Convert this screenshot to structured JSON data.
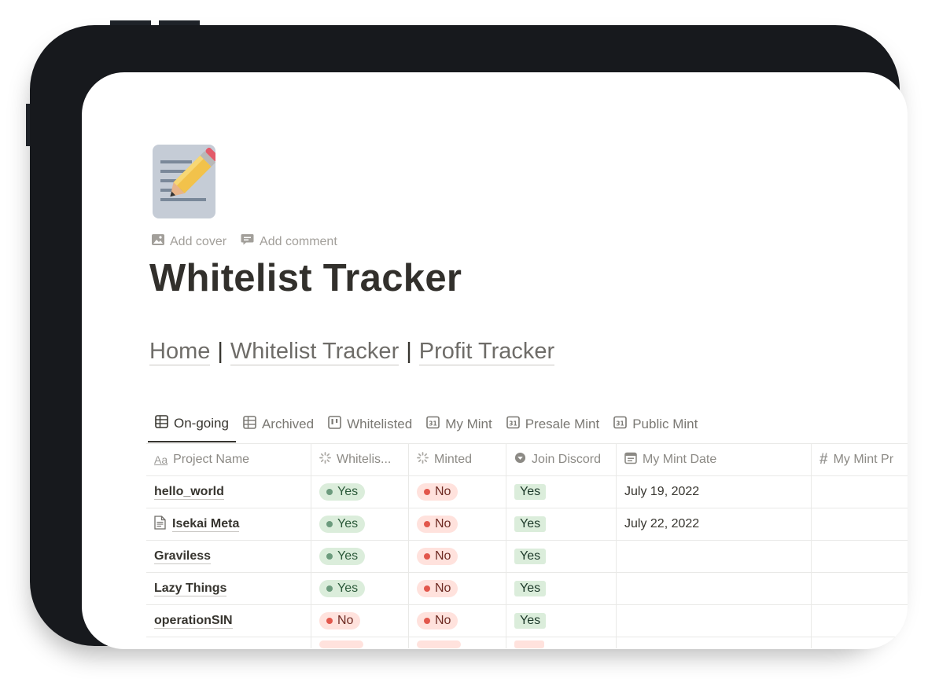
{
  "page": {
    "icon": "memo-pencil-icon",
    "actions": [
      {
        "icon": "image-icon",
        "label": "Add cover"
      },
      {
        "icon": "comment-icon",
        "label": "Add comment"
      }
    ],
    "title": "Whitelist Tracker",
    "breadcrumb": {
      "home": "Home",
      "sep1": "|",
      "whitelist": "Whitelist Tracker",
      "sep2": "|",
      "profit": "Profit Tracker"
    }
  },
  "views": [
    {
      "icon": "table-icon",
      "label": "On-going",
      "active": true
    },
    {
      "icon": "table-icon",
      "label": "Archived"
    },
    {
      "icon": "board-icon",
      "label": "Whitelisted"
    },
    {
      "icon": "calendar-icon",
      "label": "My Mint"
    },
    {
      "icon": "calendar-icon",
      "label": "Presale Mint"
    },
    {
      "icon": "calendar-icon",
      "label": "Public Mint"
    }
  ],
  "calendar_icon_text": "31",
  "columns": [
    {
      "icon": "text-aa-icon",
      "label": "Project Name"
    },
    {
      "icon": "status-icon",
      "label": "Whitelis..."
    },
    {
      "icon": "status-icon",
      "label": "Minted"
    },
    {
      "icon": "select-icon",
      "label": "Join Discord"
    },
    {
      "icon": "date-icon",
      "label": "My Mint Date"
    },
    {
      "icon": "number-icon",
      "label": "My Mint Pr"
    }
  ],
  "column_icon_text": {
    "aa": "Aa",
    "hash": "#"
  },
  "rows": [
    {
      "name": "hello_world",
      "doc": false,
      "whitelisted": "Yes",
      "minted": "No",
      "discord": "Yes",
      "mint_date": "July 19, 2022"
    },
    {
      "name": "Isekai Meta",
      "doc": true,
      "whitelisted": "Yes",
      "minted": "No",
      "discord": "Yes",
      "mint_date": "July 22, 2022"
    },
    {
      "name": "Graviless",
      "doc": false,
      "whitelisted": "Yes",
      "minted": "No",
      "discord": "Yes",
      "mint_date": ""
    },
    {
      "name": "Lazy Things",
      "doc": false,
      "whitelisted": "Yes",
      "minted": "No",
      "discord": "Yes",
      "mint_date": ""
    },
    {
      "name": "operationSIN",
      "doc": false,
      "whitelisted": "No",
      "minted": "No",
      "discord": "Yes",
      "mint_date": ""
    }
  ],
  "colors": {
    "yes_bg": "#dbeddb",
    "no_bg": "#ffe2dd",
    "device": "#17191d",
    "title": "#32302c"
  }
}
